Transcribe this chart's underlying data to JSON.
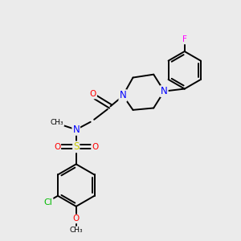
{
  "bg_color": "#ebebeb",
  "bond_color": "#000000",
  "atom_colors": {
    "N": "#0000ff",
    "O": "#ff0000",
    "S": "#cccc00",
    "Cl": "#00bb00",
    "F": "#ff00ff",
    "C": "#000000"
  },
  "font_size": 7.5,
  "bond_width": 1.4,
  "figsize": [
    3.0,
    3.0
  ],
  "dpi": 100
}
